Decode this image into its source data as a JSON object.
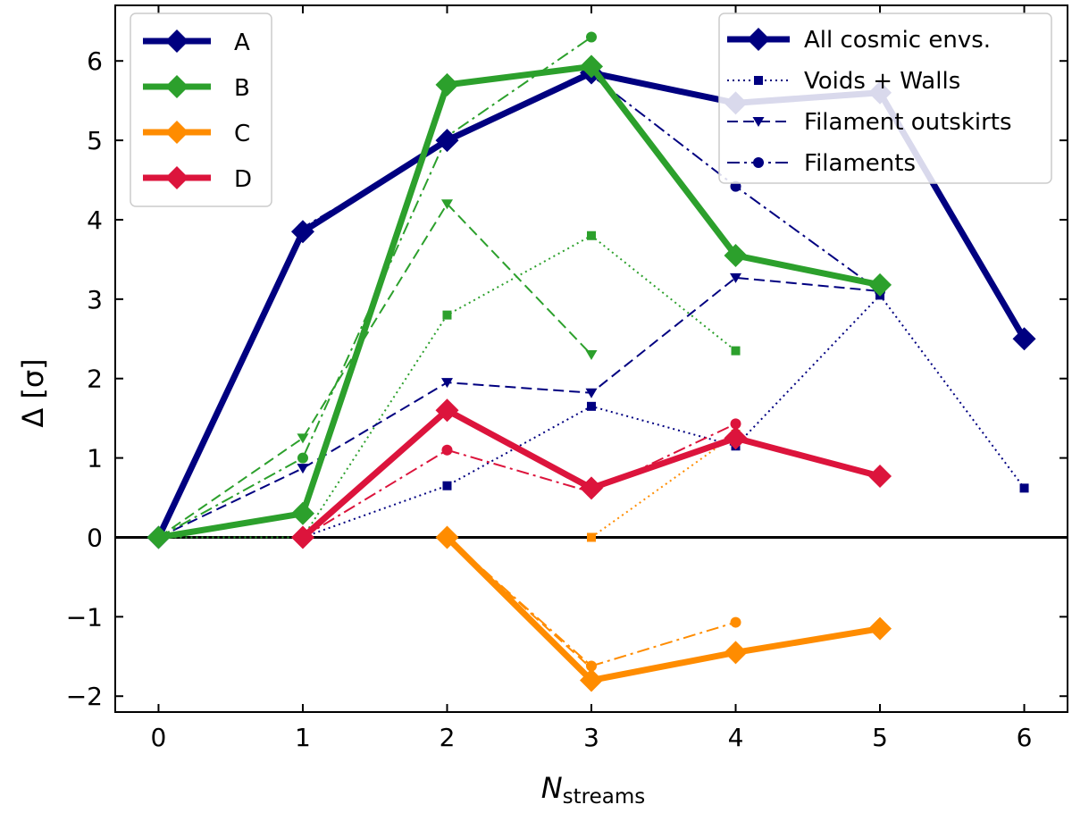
{
  "chart_data": {
    "type": "line",
    "title": "",
    "xlabel": "N",
    "xlabel_sub": "streams",
    "ylabel": "Δ [σ]",
    "xlim": [
      -0.3,
      6.3
    ],
    "ylim": [
      -2.2,
      6.7
    ],
    "xticks": [
      "0",
      "1",
      "2",
      "3",
      "4",
      "5",
      "6"
    ],
    "yticks": [
      "−2",
      "−1",
      "0",
      "1",
      "2",
      "3",
      "4",
      "5",
      "6"
    ],
    "ytick_values": [
      -2,
      -1,
      0,
      1,
      2,
      3,
      4,
      5,
      6
    ],
    "reference_line": 0,
    "groups": [
      {
        "name": "A",
        "color": "#000080",
        "series": [
          {
            "env": "All cosmic envs.",
            "x": [
              0,
              1,
              2,
              3,
              4,
              5,
              6
            ],
            "y": [
              0,
              3.85,
              5.0,
              5.85,
              5.47,
              5.6,
              2.5
            ]
          },
          {
            "env": "Voids + Walls",
            "x": [
              0,
              1,
              2,
              3,
              4,
              5,
              6
            ],
            "y": [
              0,
              0,
              0.65,
              1.65,
              1.15,
              3.05,
              0.62
            ]
          },
          {
            "env": "Filament outskirts",
            "x": [
              0,
              1,
              2,
              3,
              4,
              5
            ],
            "y": [
              0,
              0.87,
              1.95,
              1.82,
              3.27,
              3.1
            ]
          },
          {
            "env": "Filaments",
            "x": [
              0,
              1,
              2,
              3,
              4,
              5
            ],
            "y": [
              0,
              3.9,
              4.98,
              5.82,
              4.42,
              3.1
            ]
          }
        ]
      },
      {
        "name": "B",
        "color": "#2ca02c",
        "series": [
          {
            "env": "All cosmic envs.",
            "x": [
              0,
              1,
              2,
              3,
              4,
              5
            ],
            "y": [
              0,
              0.3,
              5.7,
              5.93,
              3.55,
              3.18
            ]
          },
          {
            "env": "Voids + Walls",
            "x": [
              0,
              1,
              2,
              3,
              4
            ],
            "y": [
              0,
              0,
              2.8,
              3.8,
              2.35
            ]
          },
          {
            "env": "Filament outskirts",
            "x": [
              0,
              1,
              2,
              3
            ],
            "y": [
              0,
              1.25,
              4.2,
              2.3
            ]
          },
          {
            "env": "Filaments",
            "x": [
              0,
              1,
              2,
              3
            ],
            "y": [
              0,
              1.0,
              5.05,
              6.3
            ]
          }
        ]
      },
      {
        "name": "C",
        "color": "#ff8c00",
        "series": [
          {
            "env": "All cosmic envs.",
            "x": [
              2,
              3,
              4,
              5
            ],
            "y": [
              0,
              -1.8,
              -1.45,
              -1.15
            ]
          },
          {
            "env": "Voids + Walls",
            "x": [
              3,
              4
            ],
            "y": [
              0,
              1.3
            ]
          },
          {
            "env": "Filament outskirts",
            "x": [
              2,
              3
            ],
            "y": [
              0,
              -1.65
            ]
          },
          {
            "env": "Filaments",
            "x": [
              2,
              3,
              4
            ],
            "y": [
              0,
              -1.62,
              -1.07
            ]
          }
        ]
      },
      {
        "name": "D",
        "color": "#dc143c",
        "series": [
          {
            "env": "All cosmic envs.",
            "x": [
              1,
              2,
              3,
              4,
              5
            ],
            "y": [
              0,
              1.6,
              0.62,
              1.25,
              0.77
            ]
          },
          {
            "env": "Filaments",
            "x": [
              1,
              2,
              3,
              4
            ],
            "y": [
              0,
              1.1,
              0.57,
              1.43
            ]
          }
        ]
      }
    ],
    "legend_groups": [
      "A",
      "B",
      "C",
      "D"
    ],
    "legend_group_position": "top-left",
    "legend_envs": [
      "All cosmic envs.",
      "Voids + Walls",
      "Filament outskirts",
      "Filaments"
    ],
    "legend_env_position": "top-right"
  }
}
